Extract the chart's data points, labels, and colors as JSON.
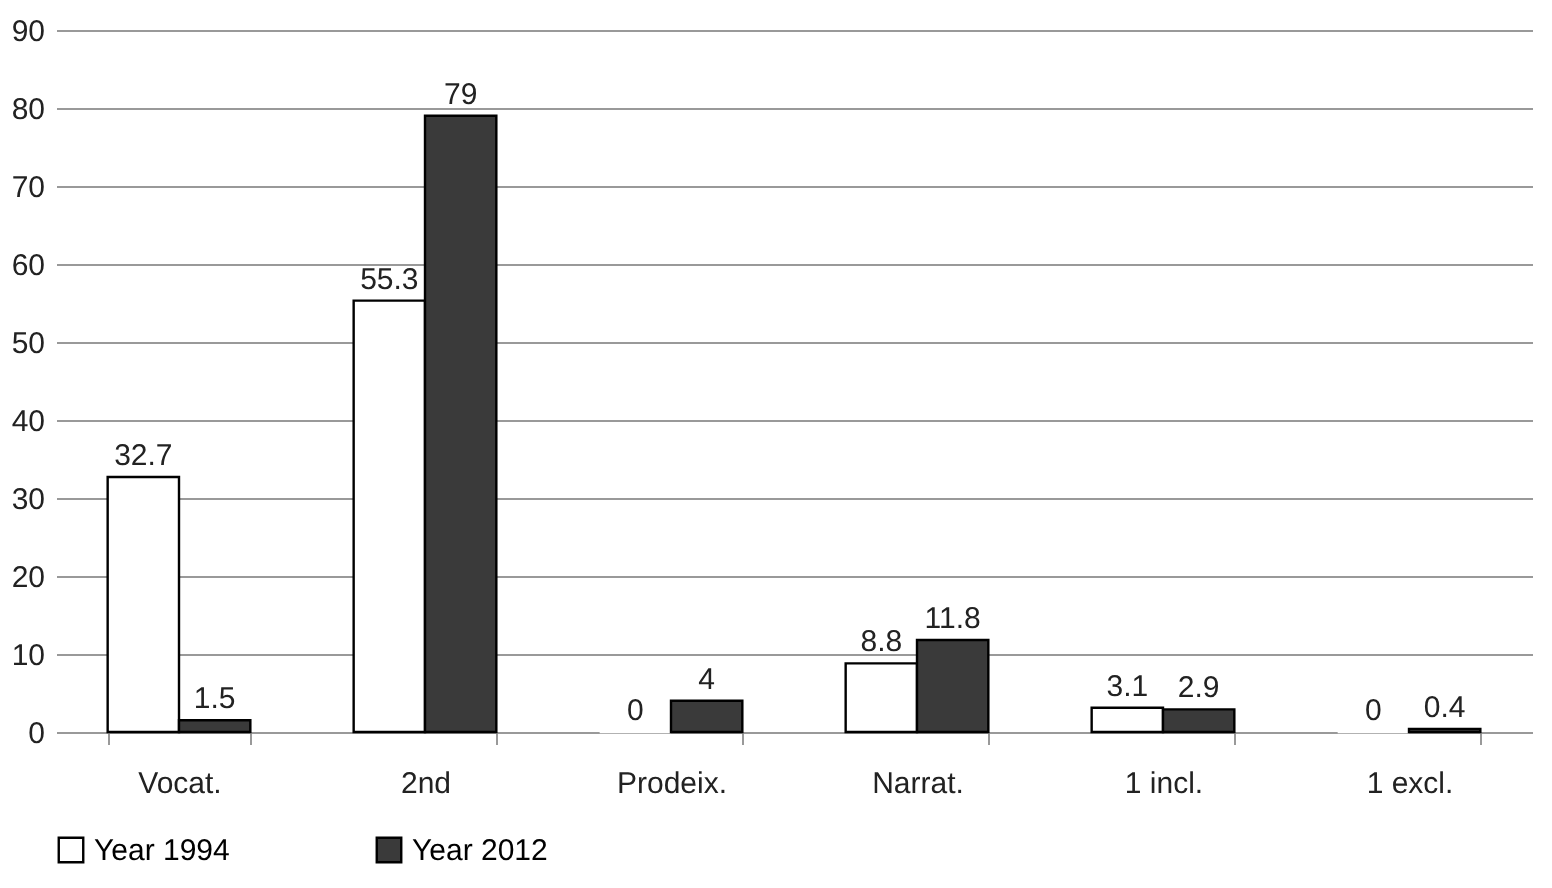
{
  "chart_data": {
    "type": "bar",
    "categories": [
      "Vocat.",
      "2nd",
      "Prodeix.",
      "Narrat.",
      "1 incl.",
      "1 excl."
    ],
    "series": [
      {
        "name": "Year 1994",
        "color": "#ffffff",
        "values": [
          32.7,
          55.3,
          0,
          8.8,
          3.1,
          0
        ]
      },
      {
        "name": "Year 2012",
        "color": "#3a3a3a",
        "values": [
          1.5,
          79,
          4,
          11.8,
          2.9,
          0.4
        ]
      }
    ],
    "ylim": [
      0,
      90
    ],
    "yticks": [
      0,
      10,
      20,
      30,
      40,
      50,
      60,
      70,
      80,
      90
    ],
    "grid": "y",
    "legend": "bottom",
    "data_labels": true
  }
}
